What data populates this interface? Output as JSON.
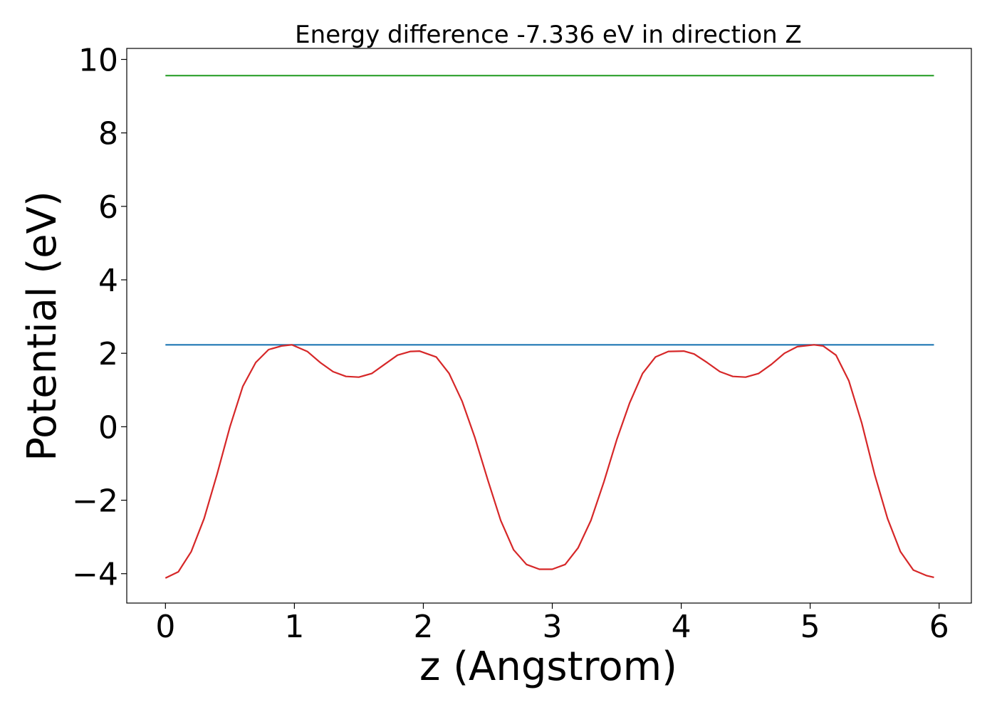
{
  "chart_data": {
    "type": "line",
    "title": "Energy difference -7.336 eV in direction Z",
    "xlabel": "z (Angstrom)",
    "ylabel": "Potential (eV)",
    "xlim": [
      -0.3,
      6.25
    ],
    "ylim": [
      -4.8,
      10.3
    ],
    "xticks": [
      0,
      1,
      2,
      3,
      4,
      5,
      6
    ],
    "xtick_labels": [
      "0",
      "1",
      "2",
      "3",
      "4",
      "5",
      "6"
    ],
    "yticks": [
      -4,
      -2,
      0,
      2,
      4,
      6,
      8,
      10
    ],
    "ytick_labels": [
      "−4",
      "−2",
      "0",
      "2",
      "4",
      "6",
      "8",
      "10"
    ],
    "grid": false,
    "series": [
      {
        "color": "#2ca02c",
        "x": [
          0,
          5.96
        ],
        "y": [
          9.56,
          9.56
        ]
      },
      {
        "color": "#1f77b4",
        "x": [
          0,
          5.96
        ],
        "y": [
          2.23,
          2.23
        ]
      },
      {
        "color": "#d62728",
        "x": [
          0,
          0.1,
          0.2,
          0.3,
          0.4,
          0.5,
          0.6,
          0.7,
          0.8,
          0.9,
          0.98,
          1.1,
          1.2,
          1.3,
          1.4,
          1.5,
          1.6,
          1.7,
          1.8,
          1.9,
          1.97,
          2.1,
          2.2,
          2.3,
          2.4,
          2.5,
          2.6,
          2.7,
          2.8,
          2.9,
          3.0,
          3.1,
          3.2,
          3.3,
          3.4,
          3.5,
          3.6,
          3.7,
          3.8,
          3.9,
          4.02,
          4.1,
          4.2,
          4.3,
          4.4,
          4.5,
          4.6,
          4.7,
          4.8,
          4.9,
          5.03,
          5.1,
          5.2,
          5.3,
          5.4,
          5.5,
          5.6,
          5.7,
          5.8,
          5.9,
          5.96
        ],
        "y": [
          -4.12,
          -3.95,
          -3.4,
          -2.5,
          -1.3,
          0.0,
          1.1,
          1.75,
          2.1,
          2.2,
          2.23,
          2.05,
          1.75,
          1.5,
          1.37,
          1.35,
          1.45,
          1.7,
          1.95,
          2.05,
          2.06,
          1.9,
          1.45,
          0.7,
          -0.3,
          -1.45,
          -2.55,
          -3.35,
          -3.75,
          -3.88,
          -3.88,
          -3.75,
          -3.3,
          -2.55,
          -1.5,
          -0.35,
          0.65,
          1.45,
          1.9,
          2.05,
          2.06,
          1.98,
          1.75,
          1.5,
          1.37,
          1.35,
          1.45,
          1.7,
          2.0,
          2.18,
          2.23,
          2.2,
          1.95,
          1.25,
          0.1,
          -1.3,
          -2.5,
          -3.4,
          -3.9,
          -4.05,
          -4.1
        ]
      }
    ]
  }
}
